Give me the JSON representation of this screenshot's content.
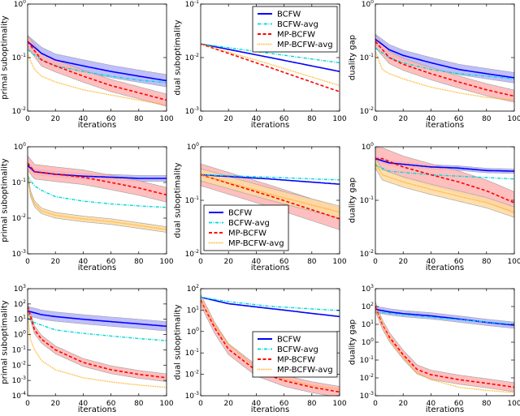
{
  "colors": {
    "BCFW": "#0000ff",
    "BCFW-avg": "#00d8d8",
    "MP-BCFW": "#ff0000",
    "MP-BCFW-avg": "#ffa500",
    "band_BCFW": "#b4b4ff",
    "band_MP-BCFW": "#ffb4b4",
    "band_MP-BCFW-avg": "#ffd9a0",
    "band_edge": "#a8a8a8"
  },
  "legend_entries": [
    "BCFW",
    "BCFW-avg",
    "MP-BCFW",
    "MP-BCFW-avg"
  ],
  "chart_data": [
    {
      "type": "line",
      "xlabel": "iterations",
      "ylabel": "primal suboptimality",
      "yscale": "log",
      "ylim": [
        0.01,
        1
      ],
      "xlim": [
        0,
        100
      ],
      "xticks": [
        0,
        20,
        40,
        60,
        80,
        100
      ],
      "legend": null,
      "series": [
        {
          "name": "BCFW",
          "x": [
            0,
            10,
            20,
            40,
            60,
            80,
            100
          ],
          "y": [
            0.2,
            0.12,
            0.09,
            0.07,
            0.055,
            0.045,
            0.037
          ],
          "band": 1.3
        },
        {
          "name": "BCFW-avg",
          "x": [
            0,
            10,
            20,
            40,
            60,
            80,
            100
          ],
          "y": [
            0.14,
            0.09,
            0.07,
            0.055,
            0.045,
            0.038,
            0.034
          ]
        },
        {
          "name": "MP-BCFW",
          "x": [
            0,
            10,
            20,
            40,
            60,
            80,
            100
          ],
          "y": [
            0.2,
            0.09,
            0.07,
            0.045,
            0.03,
            0.022,
            0.016
          ],
          "band": 1.3
        },
        {
          "name": "MP-BCFW-avg",
          "x": [
            0,
            1,
            5,
            10,
            20,
            40,
            60,
            80,
            100
          ],
          "y": [
            0.13,
            0.1,
            0.06,
            0.045,
            0.035,
            0.025,
            0.02,
            0.016,
            0.013
          ]
        }
      ]
    },
    {
      "type": "line",
      "xlabel": "iterations",
      "ylabel": "dual suboptimality",
      "yscale": "log",
      "ylim": [
        0.001,
        0.1
      ],
      "xlim": [
        0,
        100
      ],
      "xticks": [
        0,
        20,
        40,
        60,
        80,
        100
      ],
      "legend": "upper right",
      "series": [
        {
          "name": "BCFW",
          "x": [
            0,
            50,
            100
          ],
          "y": [
            0.018,
            0.01,
            0.0055
          ]
        },
        {
          "name": "BCFW-avg",
          "x": [
            0,
            50,
            100
          ],
          "y": [
            0.018,
            0.012,
            0.008
          ]
        },
        {
          "name": "MP-BCFW",
          "x": [
            0,
            50,
            100
          ],
          "y": [
            0.018,
            0.0065,
            0.0023
          ]
        },
        {
          "name": "MP-BCFW-avg",
          "x": [
            0,
            50,
            100
          ],
          "y": [
            0.018,
            0.0075,
            0.003
          ]
        }
      ]
    },
    {
      "type": "line",
      "xlabel": "iterations",
      "ylabel": "duality gap",
      "yscale": "log",
      "ylim": [
        0.01,
        1
      ],
      "xlim": [
        0,
        100
      ],
      "xticks": [
        0,
        20,
        40,
        60,
        80,
        100
      ],
      "legend": null,
      "series": [
        {
          "name": "BCFW",
          "x": [
            0,
            10,
            20,
            40,
            60,
            80,
            100
          ],
          "y": [
            0.22,
            0.14,
            0.11,
            0.08,
            0.06,
            0.05,
            0.042
          ],
          "band": 1.25
        },
        {
          "name": "BCFW-avg",
          "x": [
            0,
            10,
            20,
            40,
            60,
            80,
            100
          ],
          "y": [
            0.15,
            0.1,
            0.08,
            0.06,
            0.05,
            0.045,
            0.04
          ]
        },
        {
          "name": "MP-BCFW",
          "x": [
            0,
            10,
            20,
            40,
            60,
            80,
            100
          ],
          "y": [
            0.2,
            0.1,
            0.075,
            0.05,
            0.035,
            0.025,
            0.019
          ],
          "band": 1.3
        },
        {
          "name": "MP-BCFW-avg",
          "x": [
            0,
            5,
            10,
            20,
            40,
            60,
            80,
            100
          ],
          "y": [
            0.13,
            0.06,
            0.05,
            0.04,
            0.028,
            0.022,
            0.018,
            0.016
          ]
        }
      ]
    },
    {
      "type": "line",
      "xlabel": "iterations",
      "ylabel": "primal suboptimality",
      "yscale": "log",
      "ylim": [
        0.001,
        1
      ],
      "xlim": [
        0,
        100
      ],
      "xticks": [
        0,
        20,
        40,
        60,
        80,
        100
      ],
      "legend": null,
      "series": [
        {
          "name": "BCFW",
          "x": [
            0,
            5,
            20,
            40,
            60,
            80,
            100
          ],
          "y": [
            0.3,
            0.2,
            0.17,
            0.15,
            0.14,
            0.13,
            0.13
          ],
          "band": 1.2
        },
        {
          "name": "BCFW-avg",
          "x": [
            0,
            5,
            10,
            20,
            40,
            60,
            80,
            100
          ],
          "y": [
            0.15,
            0.08,
            0.06,
            0.04,
            0.03,
            0.025,
            0.022,
            0.02
          ]
        },
        {
          "name": "MP-BCFW",
          "x": [
            0,
            5,
            20,
            40,
            60,
            80,
            100
          ],
          "y": [
            0.35,
            0.2,
            0.17,
            0.14,
            0.1,
            0.07,
            0.045
          ],
          "band": 1.6
        },
        {
          "name": "MP-BCFW-avg",
          "x": [
            0,
            2,
            5,
            10,
            20,
            40,
            60,
            80,
            100
          ],
          "y": [
            0.2,
            0.05,
            0.025,
            0.016,
            0.012,
            0.0095,
            0.008,
            0.0062,
            0.0048
          ],
          "band": 1.2
        }
      ]
    },
    {
      "type": "line",
      "xlabel": "iterations",
      "ylabel": "dual suboptimality",
      "yscale": "log",
      "ylim": [
        0.01,
        1
      ],
      "xlim": [
        0,
        100
      ],
      "xticks": [
        0,
        20,
        40,
        60,
        80,
        100
      ],
      "legend": "lower left",
      "series": [
        {
          "name": "BCFW",
          "x": [
            0,
            50,
            100
          ],
          "y": [
            0.3,
            0.25,
            0.2
          ]
        },
        {
          "name": "BCFW-avg",
          "x": [
            0,
            50,
            100
          ],
          "y": [
            0.3,
            0.27,
            0.24
          ]
        },
        {
          "name": "MP-BCFW",
          "x": [
            0,
            50,
            100
          ],
          "y": [
            0.3,
            0.12,
            0.045
          ],
          "band": 1.6
        },
        {
          "name": "MP-BCFW-avg",
          "x": [
            0,
            50,
            100
          ],
          "y": [
            0.3,
            0.13,
            0.06
          ],
          "band": 1.3
        }
      ]
    },
    {
      "type": "line",
      "xlabel": "iterations",
      "ylabel": "duality gap",
      "yscale": "log",
      "ylim": [
        0.01,
        1
      ],
      "xlim": [
        0,
        100
      ],
      "xticks": [
        0,
        20,
        40,
        60,
        80,
        100
      ],
      "legend": null,
      "series": [
        {
          "name": "BCFW",
          "x": [
            0,
            10,
            40,
            60,
            80,
            100
          ],
          "y": [
            0.6,
            0.5,
            0.42,
            0.4,
            0.36,
            0.35
          ],
          "band": 1.1
        },
        {
          "name": "BCFW-avg",
          "x": [
            0,
            10,
            40,
            100
          ],
          "y": [
            0.45,
            0.35,
            0.3,
            0.25
          ]
        },
        {
          "name": "MP-BCFW",
          "x": [
            0,
            5,
            20,
            40,
            60,
            80,
            100
          ],
          "y": [
            0.6,
            0.6,
            0.42,
            0.3,
            0.22,
            0.15,
            0.09
          ],
          "band": 1.6
        },
        {
          "name": "MP-BCFW-avg",
          "x": [
            0,
            5,
            20,
            40,
            60,
            80,
            100
          ],
          "y": [
            0.5,
            0.3,
            0.22,
            0.16,
            0.12,
            0.09,
            0.06
          ],
          "band": 1.25
        }
      ]
    },
    {
      "type": "line",
      "xlabel": "iterations",
      "ylabel": "primal suboptimality",
      "yscale": "log",
      "ylim": [
        0.0001,
        1000
      ],
      "xlim": [
        0,
        100
      ],
      "xticks": [
        0,
        20,
        40,
        60,
        80,
        100
      ],
      "legend": null,
      "series": [
        {
          "name": "BCFW",
          "x": [
            0,
            10,
            20,
            40,
            60,
            80,
            100
          ],
          "y": [
            35,
            20,
            15,
            10,
            7,
            5,
            3.5
          ],
          "band": 2
        },
        {
          "name": "BCFW-avg",
          "x": [
            0,
            5,
            20,
            40,
            60,
            80,
            100
          ],
          "y": [
            12,
            6,
            2,
            1.2,
            0.8,
            0.55,
            0.4
          ]
        },
        {
          "name": "MP-BCFW",
          "x": [
            0,
            5,
            10,
            20,
            40,
            60,
            80,
            100
          ],
          "y": [
            70,
            2,
            0.5,
            0.1,
            0.015,
            0.005,
            0.0025,
            0.0015
          ],
          "band": 1.8
        },
        {
          "name": "MP-BCFW-avg",
          "x": [
            0,
            2,
            5,
            10,
            20,
            40,
            60,
            80,
            100
          ],
          "y": [
            30,
            0.5,
            0.1,
            0.02,
            0.005,
            0.0015,
            0.0008,
            0.0005,
            0.00035
          ]
        }
      ]
    },
    {
      "type": "line",
      "xlabel": "iterations",
      "ylabel": "dual suboptimality",
      "yscale": "log",
      "ylim": [
        0.001,
        100
      ],
      "xlim": [
        0,
        100
      ],
      "xticks": [
        0,
        20,
        40,
        60,
        80,
        100
      ],
      "legend": "center right",
      "series": [
        {
          "name": "BCFW",
          "x": [
            0,
            20,
            40,
            60,
            80,
            100
          ],
          "y": [
            40,
            20,
            14,
            10,
            7,
            5
          ]
        },
        {
          "name": "BCFW-avg",
          "x": [
            0,
            20,
            50,
            100
          ],
          "y": [
            40,
            25,
            15,
            9.5
          ]
        },
        {
          "name": "MP-BCFW",
          "x": [
            0,
            10,
            20,
            40,
            60,
            80,
            100
          ],
          "y": [
            30,
            1.5,
            0.15,
            0.015,
            0.005,
            0.0025,
            0.0015
          ],
          "band": 1.8
        },
        {
          "name": "MP-BCFW-avg",
          "x": [
            0,
            10,
            20,
            40,
            60,
            80,
            100
          ],
          "y": [
            30,
            2,
            0.25,
            0.02,
            0.006,
            0.003,
            0.002
          ]
        }
      ]
    },
    {
      "type": "line",
      "xlabel": "iterations",
      "ylabel": "duality gap",
      "yscale": "log",
      "ylim": [
        0.001,
        1000
      ],
      "xlim": [
        0,
        100
      ],
      "xticks": [
        0,
        20,
        40,
        60,
        80,
        100
      ],
      "legend": null,
      "series": [
        {
          "name": "BCFW",
          "x": [
            0,
            10,
            20,
            40,
            60,
            80,
            100
          ],
          "y": [
            70,
            50,
            40,
            30,
            20,
            13,
            9
          ],
          "band": 1.5
        },
        {
          "name": "BCFW-avg",
          "x": [
            0,
            20,
            40,
            100
          ],
          "y": [
            50,
            35,
            25,
            10
          ]
        },
        {
          "name": "MP-BCFW",
          "x": [
            0,
            5,
            10,
            20,
            30,
            40,
            60,
            80,
            100
          ],
          "y": [
            100,
            10,
            2,
            0.2,
            0.03,
            0.015,
            0.008,
            0.005,
            0.003
          ],
          "band": 1.8
        },
        {
          "name": "MP-BCFW-avg",
          "x": [
            0,
            10,
            20,
            30,
            40,
            60,
            80,
            100
          ],
          "y": [
            80,
            1.5,
            0.15,
            0.02,
            0.008,
            0.003,
            0.002,
            0.0015
          ]
        }
      ]
    }
  ]
}
